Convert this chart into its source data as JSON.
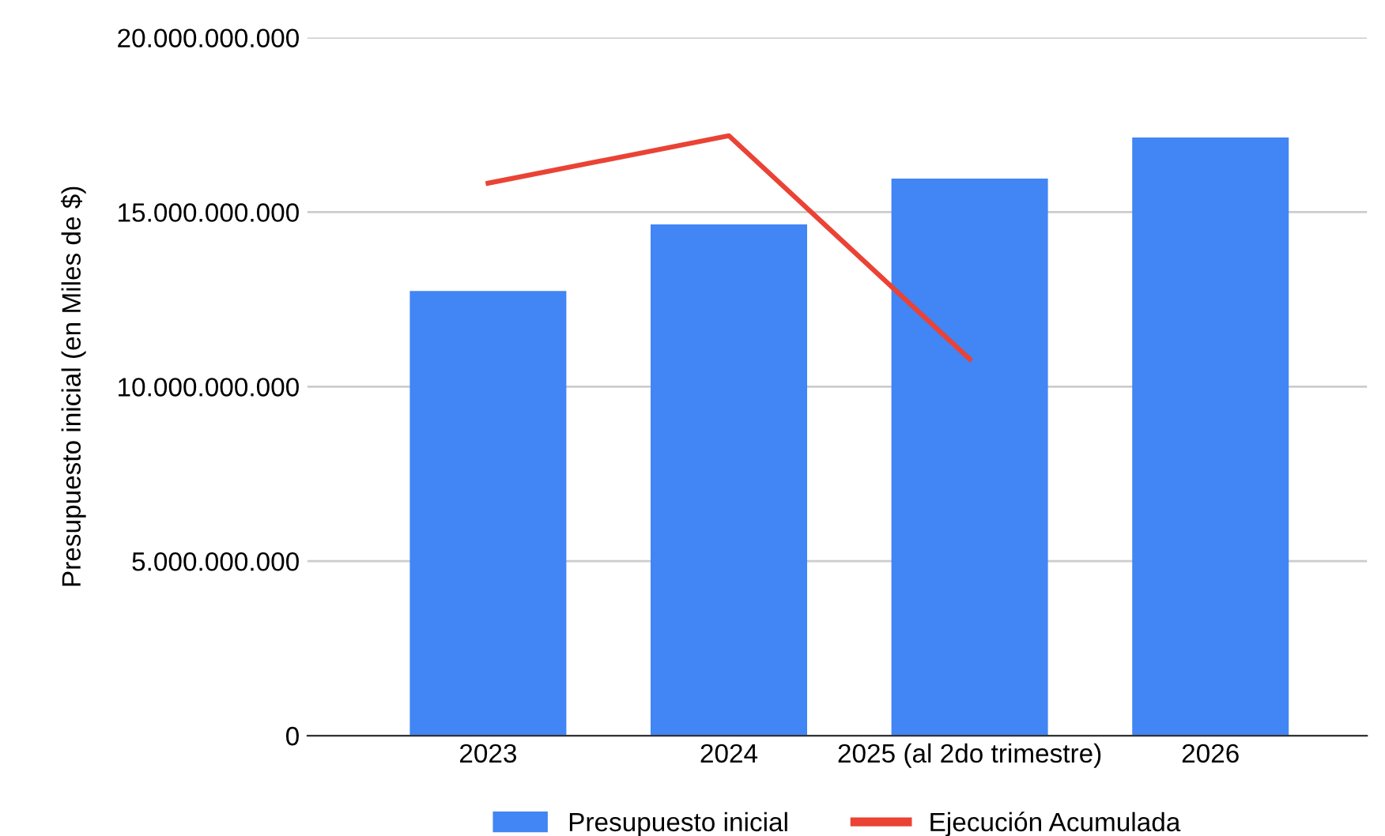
{
  "chart_data": {
    "type": "bar",
    "ylabel": "Presupuesto inicial (en Miles de $)",
    "categories": [
      "2023",
      "2024",
      "2025 (al 2do trimestre)",
      "2026"
    ],
    "series": [
      {
        "name": "Presupuesto inicial",
        "color": "#4285f4",
        "values": [
          12740000000,
          14650000000,
          15960000000,
          17140000000
        ]
      },
      {
        "name": "Ejecución Acumulada",
        "type": "line",
        "color": "#ea4335",
        "values": [
          15830000000,
          17190000000,
          10790000000,
          null
        ]
      }
    ],
    "ylim": [
      0,
      20000000000
    ],
    "yticks": [
      {
        "value": 0,
        "label": "0"
      },
      {
        "value": 5000000000,
        "label": "5.000.000.000"
      },
      {
        "value": 10000000000,
        "label": "10.000.000.000"
      },
      {
        "value": 15000000000,
        "label": "15.000.000.000"
      },
      {
        "value": 20000000000,
        "label": "20.000.000.000"
      }
    ],
    "grid": "y",
    "legend": "bottom",
    "marker": "none"
  }
}
